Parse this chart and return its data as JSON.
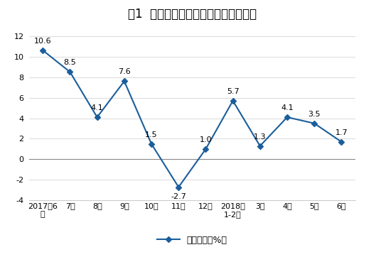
{
  "title": "图1  规模以上工业原煤产量月度走势图",
  "x_labels": [
    "2017年6\n月",
    "7月",
    "8月",
    "9月",
    "10月",
    "11月",
    "12月",
    "2018年\n1-2月",
    "3月",
    "4月",
    "5月",
    "6月"
  ],
  "values": [
    10.6,
    8.5,
    4.1,
    7.6,
    1.5,
    -2.7,
    1.0,
    5.7,
    1.3,
    4.1,
    3.5,
    1.7
  ],
  "data_labels": [
    "10.6",
    "8.5",
    "4.1",
    "7.6",
    "1.5",
    "-2.7",
    "1.0",
    "5.7",
    "1.3",
    "4.1",
    "3.5",
    "1.7"
  ],
  "label_above": [
    true,
    true,
    true,
    true,
    true,
    false,
    true,
    true,
    true,
    true,
    true,
    true
  ],
  "ylim": [
    -4,
    13
  ],
  "yticks": [
    -4,
    -2,
    0,
    2,
    4,
    6,
    8,
    10,
    12
  ],
  "line_color": "#1B5E9B",
  "marker_color": "#1B5E9B",
  "marker_style": "D",
  "marker_size": 4,
  "legend_label": "当月增速（%）",
  "bg_color": "#FFFFFF",
  "grid_color": "#CCCCCC",
  "zero_line_color": "#888888",
  "title_fontsize": 12,
  "tick_fontsize": 8,
  "legend_fontsize": 9
}
